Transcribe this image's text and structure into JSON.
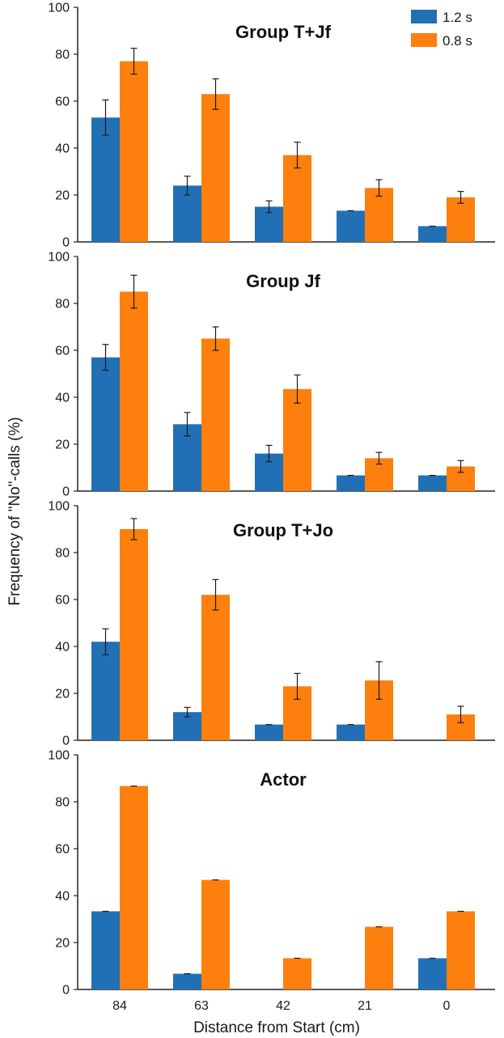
{
  "chart_data": {
    "type": "bar",
    "categories": [
      "84",
      "63",
      "42",
      "21",
      "0"
    ],
    "ylabel": "Frequency of \"No\"-calls (%)",
    "xlabel": "Distance from Start (cm)",
    "ylim": [
      0,
      100
    ],
    "yticks": [
      "0",
      "20",
      "40",
      "60",
      "80",
      "100"
    ],
    "legend": {
      "position": "top-right",
      "entries": [
        {
          "name": "1.2 s",
          "color": "#2170b5"
        },
        {
          "name": "0.8 s",
          "color": "#fd7f0e"
        }
      ]
    },
    "panels": [
      {
        "title": "Group T+Jf",
        "series": [
          {
            "name": "1.2 s",
            "values": [
              53,
              24,
              15,
              13.3,
              6.7
            ],
            "errors": [
              7.5,
              4,
              2.5,
              0,
              0
            ]
          },
          {
            "name": "0.8 s",
            "values": [
              77,
              63,
              37,
              23,
              19
            ],
            "errors": [
              5.5,
              6.5,
              5.5,
              3.5,
              2.5
            ]
          }
        ]
      },
      {
        "title": "Group Jf",
        "series": [
          {
            "name": "1.2 s",
            "values": [
              57,
              28.5,
              16,
              6.7,
              6.7
            ],
            "errors": [
              5.5,
              5,
              3.5,
              0,
              0
            ]
          },
          {
            "name": "0.8 s",
            "values": [
              85,
              65,
              43.5,
              14,
              10.5
            ],
            "errors": [
              7,
              5,
              6,
              2.5,
              2.5
            ]
          }
        ]
      },
      {
        "title": "Group T+Jo",
        "series": [
          {
            "name": "1.2 s",
            "values": [
              42,
              12,
              6.7,
              6.7,
              0
            ],
            "errors": [
              5.5,
              2,
              0,
              0,
              0
            ]
          },
          {
            "name": "0.8 s",
            "values": [
              90,
              62,
              23,
              25.5,
              11
            ],
            "errors": [
              4.5,
              6.5,
              5.5,
              8,
              3.5
            ]
          }
        ]
      },
      {
        "title": "Actor",
        "series": [
          {
            "name": "1.2 s",
            "values": [
              33.3,
              6.7,
              0,
              0,
              13.3
            ],
            "errors": [
              0,
              0,
              0,
              0,
              0
            ]
          },
          {
            "name": "0.8 s",
            "values": [
              86.7,
              46.7,
              13.3,
              26.7,
              33.3
            ],
            "errors": [
              0,
              0,
              0,
              0,
              0
            ]
          }
        ]
      }
    ]
  }
}
